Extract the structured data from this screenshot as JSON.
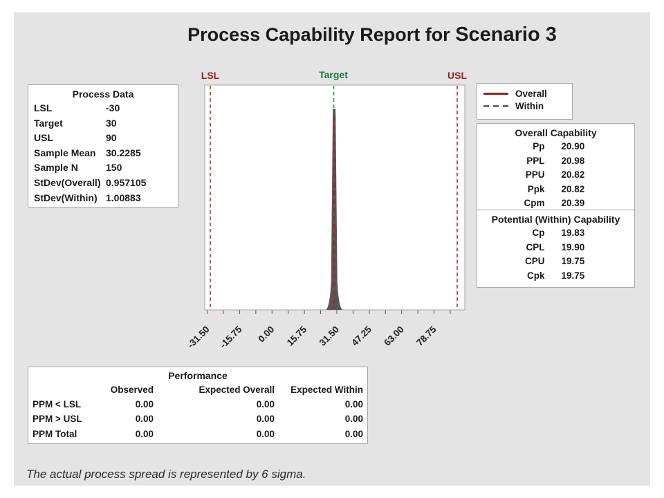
{
  "title": {
    "prefix": "Process Capability Report for ",
    "subject": "Scenario 3"
  },
  "process_data": {
    "title": "Process Data",
    "rows": [
      {
        "label": "LSL",
        "value": "-30"
      },
      {
        "label": "Target",
        "value": "30"
      },
      {
        "label": "USL",
        "value": "90"
      },
      {
        "label": "Sample Mean",
        "value": "30.2285"
      },
      {
        "label": "Sample N",
        "value": "150"
      },
      {
        "label": "StDev(Overall)",
        "value": "0.957105"
      },
      {
        "label": "StDev(Within)",
        "value": "1.00883"
      }
    ]
  },
  "legend": {
    "items": [
      {
        "label": "Overall",
        "line": "solid",
        "color": "#9c1b20"
      },
      {
        "label": "Within",
        "line": "dashed",
        "color": "#6b6b6b"
      }
    ]
  },
  "overall_capability": {
    "title": "Overall Capability",
    "rows": [
      {
        "label": "Pp",
        "value": "20.90"
      },
      {
        "label": "PPL",
        "value": "20.98"
      },
      {
        "label": "PPU",
        "value": "20.82"
      },
      {
        "label": "Ppk",
        "value": "20.82"
      },
      {
        "label": "Cpm",
        "value": "20.39"
      }
    ]
  },
  "within_capability": {
    "title": "Potential (Within) Capability",
    "rows": [
      {
        "label": "Cp",
        "value": "19.83"
      },
      {
        "label": "CPL",
        "value": "19.90"
      },
      {
        "label": "CPU",
        "value": "19.75"
      },
      {
        "label": "Cpk",
        "value": "19.75"
      }
    ]
  },
  "performance": {
    "title": "Performance",
    "columns": [
      "Observed",
      "Expected Overall",
      "Expected Within"
    ],
    "rows": [
      {
        "label": "PPM < LSL",
        "values": [
          "0.00",
          "0.00",
          "0.00"
        ]
      },
      {
        "label": "PPM > USL",
        "values": [
          "0.00",
          "0.00",
          "0.00"
        ]
      },
      {
        "label": "PPM Total",
        "values": [
          "0.00",
          "0.00",
          "0.00"
        ]
      }
    ]
  },
  "footnote": "The actual process spread is represented by 6 sigma.",
  "chart_data": {
    "type": "area",
    "description": "Process capability histogram with overall (solid) and within (dashed) normal curves; distribution is a narrow spike at the target.",
    "spec_lines": {
      "lsl": {
        "label": "LSL",
        "value": -30
      },
      "target": {
        "label": "Target",
        "value": 30
      },
      "usl": {
        "label": "USL",
        "value": 90
      }
    },
    "x_axis": {
      "min": -32.7,
      "max": 93.7,
      "labeled_ticks": [
        -31.5,
        -15.75,
        0,
        15.75,
        31.5,
        47.25,
        63,
        78.75
      ],
      "minor_tick_step": 7.875,
      "tick_label_rotation": -45
    },
    "histogram": {
      "center": 30.2285,
      "sigma_overall": 0.957105,
      "sigma_within": 1.00883,
      "base_half_width_units": 4.0,
      "peak_top_fraction": 0.895
    },
    "legend_entries": [
      "Overall",
      "Within"
    ],
    "colors": {
      "spec_line": "#cc3333",
      "spec_label": "#9b1c20",
      "target_line": "#2fa04f",
      "target_label": "#1e7a38",
      "histogram_fill": "#575757",
      "overall_curve": "#a6232a",
      "plot_border": "#a3a3a3",
      "panel_background": "#e4e4e4"
    }
  }
}
